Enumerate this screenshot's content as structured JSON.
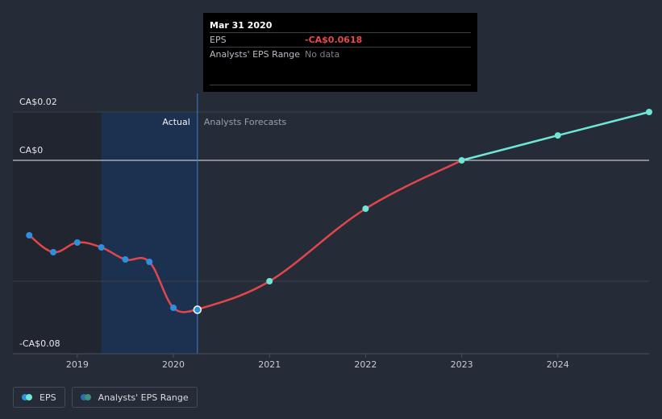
{
  "tooltip": {
    "date": "Mar 31 2020",
    "rows": [
      {
        "label": "EPS",
        "value": "-CA$0.0618"
      },
      {
        "label": "Analysts' EPS Range",
        "value": "No data"
      }
    ]
  },
  "zones": {
    "actual": "Actual",
    "forecast": "Analysts Forecasts"
  },
  "legend": [
    {
      "label": "EPS",
      "colors": [
        "#2e8fe0",
        "#6ee7d6"
      ]
    },
    {
      "label": "Analysts' EPS Range",
      "colors": [
        "#2a6fa8",
        "#3f8f86"
      ]
    }
  ],
  "colors": {
    "background": "#252b37",
    "actual_point": "#2e8fe0",
    "forecast_point": "#6ee7d6",
    "negative_line": "#e0474c",
    "positive_line": "#6ee7d6",
    "actual_band": "#1a3358"
  },
  "chart_data": {
    "type": "line",
    "x_unit": "year",
    "xlim": [
      2018.33,
      2024.95
    ],
    "ylim": [
      -0.08,
      0.02
    ],
    "y_ticks": [
      {
        "value": 0.02,
        "label": "CA$0.02"
      },
      {
        "value": 0,
        "label": "CA$0"
      },
      {
        "value": -0.08,
        "label": "-CA$0.08"
      }
    ],
    "x_ticks": [
      {
        "value": 2019,
        "label": "2019"
      },
      {
        "value": 2020,
        "label": "2020"
      },
      {
        "value": 2021,
        "label": "2021"
      },
      {
        "value": 2022,
        "label": "2022"
      },
      {
        "value": 2023,
        "label": "2023"
      },
      {
        "value": 2024,
        "label": "2024"
      }
    ],
    "series": [
      {
        "name": "EPS",
        "kind": "actual",
        "x": [
          2018.5,
          2018.75,
          2019.0,
          2019.25,
          2019.5,
          2019.75,
          2020.0,
          2020.25
        ],
        "y": [
          -0.031,
          -0.038,
          -0.034,
          -0.036,
          -0.041,
          -0.042,
          -0.061,
          -0.0618
        ]
      },
      {
        "name": "EPS",
        "kind": "forecast",
        "x": [
          2020.25,
          2021.0,
          2022.0,
          2023.0,
          2024.0,
          2024.95
        ],
        "y": [
          -0.0618,
          -0.05,
          -0.02,
          0.0,
          0.0103,
          0.02
        ]
      }
    ],
    "highlight": {
      "x": 2020.25,
      "y": -0.0618
    },
    "actual_cutoff_x": 2020.25,
    "grid": true,
    "legend_position": "bottom-left"
  }
}
